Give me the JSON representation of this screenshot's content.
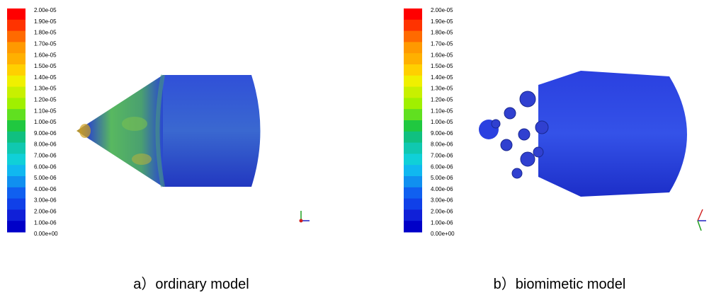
{
  "panels": [
    {
      "colorbar": {
        "labels": [
          "2.00e-05",
          "1.90e-05",
          "1.80e-05",
          "1.70e-05",
          "1.60e-05",
          "1.50e-05",
          "1.40e-05",
          "1.30e-05",
          "1.20e-05",
          "1.10e-05",
          "1.00e-05",
          "9.00e-06",
          "8.00e-06",
          "7.00e-06",
          "6.00e-06",
          "5.00e-06",
          "4.00e-06",
          "3.00e-06",
          "2.00e-06",
          "1.00e-06",
          "0.00e+00"
        ]
      },
      "caption": "a）ordinary model"
    },
    {
      "colorbar": {
        "labels": [
          "2.00e-05",
          "1.90e-05",
          "1.80e-05",
          "1.70e-05",
          "1.60e-05",
          "1.50e-05",
          "1.40e-05",
          "1.30e-05",
          "1.20e-05",
          "1.10e-05",
          "1.00e-05",
          "9.00e-06",
          "8.00e-06",
          "7.00e-06",
          "6.00e-06",
          "5.00e-06",
          "4.00e-06",
          "3.00e-06",
          "2.00e-06",
          "1.00e-06",
          "0.00e+00"
        ]
      },
      "caption": "b）biomimetic model"
    }
  ]
}
